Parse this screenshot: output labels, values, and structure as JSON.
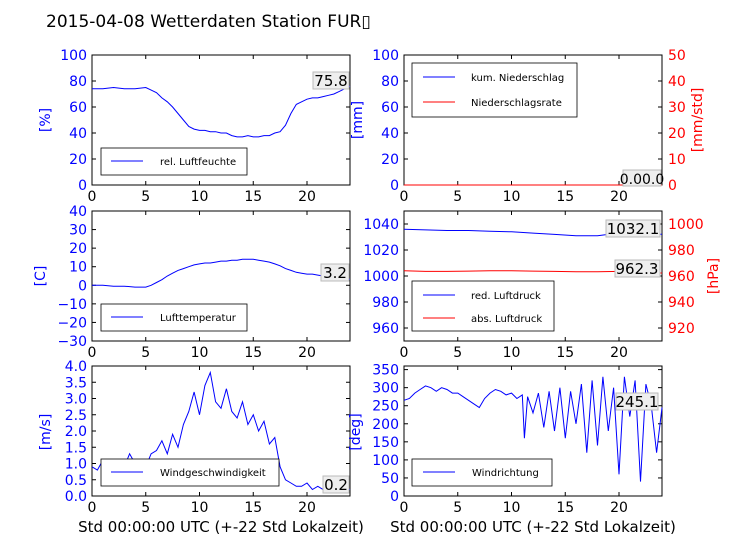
{
  "title": "2015-04-08 Wetterdaten Station FUR▯",
  "x_label": "Std 00:00:00 UTC (+-22 Std Lokalzeit)",
  "x_ticks": [
    "0",
    "5",
    "10",
    "15",
    "20"
  ],
  "colors": {
    "left_axis": "#0000ff",
    "right_axis": "#ff0000",
    "text": "#000000"
  },
  "chart_data": [
    {
      "type": "line",
      "id": "humidity",
      "ylabel": "[%]",
      "ylim": [
        0,
        100
      ],
      "yticks": [
        "0",
        "20",
        "40",
        "60",
        "80",
        "100"
      ],
      "xlim": [
        0,
        24
      ],
      "grid": false,
      "legend_position": "lower-left",
      "readout": "75.8",
      "series": [
        {
          "name": "rel. Luftfeuchte",
          "color": "#0000ff",
          "x": [
            0,
            1,
            2,
            3,
            4,
            5,
            5.5,
            6,
            6.5,
            7,
            7.5,
            8,
            8.5,
            9,
            9.5,
            10,
            10.5,
            11,
            11.5,
            12,
            12.5,
            13,
            13.5,
            14,
            14.5,
            15,
            15.5,
            16,
            16.5,
            17,
            17.5,
            18,
            18.5,
            19,
            19.5,
            20,
            20.5,
            21,
            21.5,
            22,
            22.5,
            23,
            23.5,
            24
          ],
          "y": [
            74,
            74,
            75,
            74,
            74,
            75,
            73,
            71,
            67,
            64,
            60,
            55,
            50,
            45,
            43,
            42,
            42,
            41,
            41,
            40,
            40,
            38,
            37,
            37,
            38,
            37,
            37,
            38,
            38,
            40,
            41,
            46,
            55,
            62,
            64,
            66,
            67,
            67,
            68,
            69,
            70,
            72,
            74,
            76
          ]
        }
      ]
    },
    {
      "type": "line",
      "id": "precipitation",
      "ylabel": "[mm]",
      "ylim": [
        0,
        100
      ],
      "yticks": [
        "0",
        "20",
        "40",
        "60",
        "80",
        "100"
      ],
      "y2label": "[mm/std]",
      "y2lim": [
        0,
        50
      ],
      "y2ticks": [
        "0",
        "10",
        "20",
        "30",
        "40",
        "50"
      ],
      "xlim": [
        0,
        24
      ],
      "grid": false,
      "legend_position": "upper-left",
      "readout": "0.00.0",
      "series": [
        {
          "name": "kum. Niederschlag",
          "color": "#0000ff",
          "axis": "left",
          "x": [
            0,
            24
          ],
          "y": [
            0,
            0
          ]
        },
        {
          "name": "Niederschlagsrate",
          "color": "#ff0000",
          "axis": "right",
          "x": [
            0,
            24
          ],
          "y": [
            0,
            0
          ]
        }
      ]
    },
    {
      "type": "line",
      "id": "temperature",
      "ylabel": "[C]",
      "ylim": [
        -30,
        40
      ],
      "yticks": [
        "−30",
        "−20",
        "−10",
        "0",
        "10",
        "20",
        "30",
        "40"
      ],
      "xlim": [
        0,
        24
      ],
      "grid": false,
      "legend_position": "lower-left",
      "readout": "3.2",
      "series": [
        {
          "name": "Lufttemperatur",
          "color": "#0000ff",
          "x": [
            0,
            1,
            2,
            3,
            4,
            5,
            5.5,
            6,
            6.5,
            7,
            7.5,
            8,
            8.5,
            9,
            9.5,
            10,
            10.5,
            11,
            11.5,
            12,
            12.5,
            13,
            13.5,
            14,
            14.5,
            15,
            15.5,
            16,
            16.5,
            17,
            17.5,
            18,
            18.5,
            19,
            19.5,
            20,
            20.5,
            21,
            21.5,
            22,
            22.5,
            23,
            23.5,
            24
          ],
          "y": [
            0,
            0,
            -0.5,
            -0.5,
            -1,
            -1,
            0,
            1.5,
            3,
            5,
            6.5,
            8,
            9,
            10,
            11,
            11.5,
            12,
            12,
            12.5,
            13,
            13,
            13.5,
            13.5,
            14,
            14,
            14,
            13.5,
            13,
            12.5,
            11.5,
            10.5,
            9,
            8,
            7,
            6.5,
            6,
            6,
            5.5,
            5,
            5,
            4.5,
            4,
            3.5,
            3.2
          ]
        }
      ]
    },
    {
      "type": "line",
      "id": "pressure",
      "ylim": [
        950,
        1050
      ],
      "yticks": [
        "960",
        "980",
        "1000",
        "1020",
        "1040"
      ],
      "y2label": "[hPa]",
      "y2lim": [
        910,
        1010
      ],
      "y2ticks": [
        "920",
        "940",
        "960",
        "980",
        "1000"
      ],
      "xlim": [
        0,
        24
      ],
      "grid": false,
      "legend_position": "lower-left",
      "readouts": [
        "1032.1",
        "962.3"
      ],
      "series": [
        {
          "name": "red. Luftdruck",
          "color": "#0000ff",
          "axis": "left",
          "x": [
            0,
            2,
            4,
            6,
            8,
            10,
            12,
            14,
            16,
            17,
            18,
            19,
            20,
            21,
            22,
            23,
            24
          ],
          "y": [
            1036,
            1035.5,
            1035,
            1035,
            1034.5,
            1034,
            1033,
            1032,
            1031,
            1031,
            1031,
            1032,
            1032.5,
            1032.5,
            1032.5,
            1032.3,
            1032.1
          ]
        },
        {
          "name": "abs. Luftdruck",
          "color": "#ff0000",
          "axis": "right",
          "x": [
            0,
            2,
            4,
            6,
            8,
            10,
            12,
            14,
            16,
            18,
            20,
            22,
            24
          ],
          "y": [
            964,
            963.5,
            963.5,
            963.8,
            964,
            964,
            963.8,
            963.5,
            963.3,
            963.3,
            963.5,
            962.5,
            962.3
          ]
        }
      ]
    },
    {
      "type": "line",
      "id": "windspeed",
      "ylabel": "[m/s]",
      "ylim": [
        0,
        4
      ],
      "yticks": [
        "0.0",
        "0.5",
        "1.0",
        "1.5",
        "2.0",
        "2.5",
        "3.0",
        "3.5",
        "4.0"
      ],
      "xlim": [
        0,
        24
      ],
      "grid": false,
      "legend_position": "lower-left",
      "readout": "0.2",
      "series": [
        {
          "name": "Windgeschwindigkeit",
          "color": "#0000ff",
          "x": [
            0,
            0.5,
            1,
            1.5,
            2,
            2.5,
            3,
            3.5,
            4,
            4.5,
            5,
            5.5,
            6,
            6.5,
            7,
            7.5,
            8,
            8.5,
            9,
            9.5,
            10,
            10.5,
            11,
            11.5,
            12,
            12.5,
            13,
            13.5,
            14,
            14.5,
            15,
            15.5,
            16,
            16.5,
            17,
            17.5,
            18,
            18.5,
            19,
            19.5,
            20,
            20.5,
            21,
            21.5,
            22,
            22.5,
            23,
            23.5,
            24
          ],
          "y": [
            0.9,
            0.8,
            1.1,
            0.9,
            1.0,
            1.1,
            0.9,
            1.3,
            1.0,
            1.1,
            0.9,
            1.3,
            1.4,
            1.7,
            1.3,
            1.9,
            1.5,
            2.2,
            2.6,
            3.2,
            2.5,
            3.4,
            3.8,
            2.9,
            2.7,
            3.3,
            2.6,
            2.4,
            2.9,
            2.2,
            2.5,
            2.0,
            2.3,
            1.6,
            1.8,
            0.9,
            0.5,
            0.4,
            0.3,
            0.3,
            0.4,
            0.2,
            0.3,
            0.2,
            0.3,
            0.2,
            0.4,
            0.3,
            0.2
          ]
        }
      ]
    },
    {
      "type": "line",
      "id": "winddirection",
      "ylabel": "[deg]",
      "ylim": [
        0,
        360
      ],
      "yticks": [
        "0",
        "50",
        "100",
        "150",
        "200",
        "250",
        "300",
        "350"
      ],
      "xlim": [
        0,
        24
      ],
      "grid": false,
      "legend_position": "lower-left",
      "readout": "245.1",
      "series": [
        {
          "name": "Windrichtung",
          "color": "#0000ff",
          "x": [
            0,
            0.5,
            1,
            1.5,
            2,
            2.5,
            3,
            3.5,
            4,
            4.5,
            5,
            5.5,
            6,
            6.5,
            7,
            7.5,
            8,
            8.5,
            9,
            9.5,
            10,
            10.5,
            11,
            11.2,
            11.5,
            12,
            12.5,
            13,
            13.5,
            14,
            14.5,
            15,
            15.5,
            16,
            16.5,
            17,
            17.5,
            18,
            18.5,
            19,
            19.5,
            20,
            20.5,
            21,
            21.5,
            22,
            22.5,
            23,
            23.5,
            24
          ],
          "y": [
            265,
            270,
            285,
            295,
            305,
            300,
            290,
            300,
            295,
            285,
            285,
            275,
            265,
            255,
            245,
            270,
            285,
            295,
            290,
            280,
            285,
            270,
            280,
            160,
            275,
            230,
            285,
            190,
            290,
            180,
            300,
            160,
            290,
            200,
            310,
            120,
            320,
            140,
            330,
            180,
            300,
            60,
            330,
            220,
            320,
            40,
            310,
            250,
            120,
            245
          ]
        }
      ]
    }
  ]
}
